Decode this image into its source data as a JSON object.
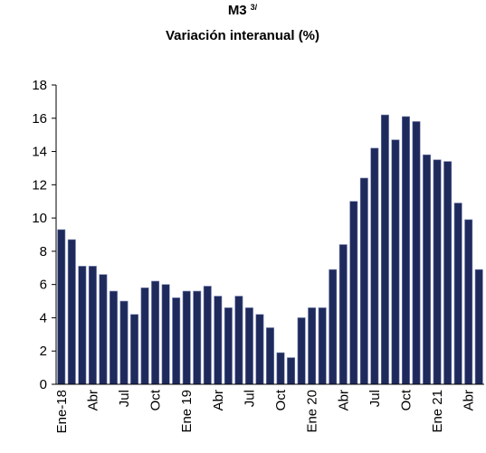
{
  "chart_data": {
    "type": "bar",
    "title": "M3",
    "title_note": "3/",
    "subtitle": "Variación interanual (%)",
    "categories": [
      "Ene-18",
      null,
      null,
      "Abr",
      null,
      null,
      "Jul",
      null,
      null,
      "Oct",
      null,
      null,
      "Ene 19",
      null,
      null,
      "Abr",
      null,
      null,
      "Jul",
      null,
      null,
      "Oct",
      null,
      null,
      "Ene 20",
      null,
      null,
      "Abr",
      null,
      null,
      "Jul",
      null,
      null,
      "Oct",
      null,
      null,
      "Ene 21",
      null,
      null,
      "Abr",
      null
    ],
    "values": [
      9.3,
      8.7,
      7.1,
      7.1,
      6.6,
      5.6,
      5.0,
      4.2,
      5.8,
      6.2,
      6.0,
      5.2,
      5.6,
      5.6,
      5.9,
      5.3,
      4.6,
      5.3,
      4.6,
      4.2,
      3.4,
      1.9,
      1.6,
      4.0,
      4.6,
      4.6,
      6.9,
      8.4,
      11.0,
      12.4,
      14.2,
      16.2,
      14.7,
      16.1,
      15.8,
      13.8,
      13.5,
      13.4,
      10.9,
      9.9,
      6.9
    ],
    "color": "#1f2a5c",
    "ylim": [
      0,
      18
    ],
    "yticks": [
      0,
      2,
      4,
      6,
      8,
      10,
      12,
      14,
      16,
      18
    ]
  }
}
